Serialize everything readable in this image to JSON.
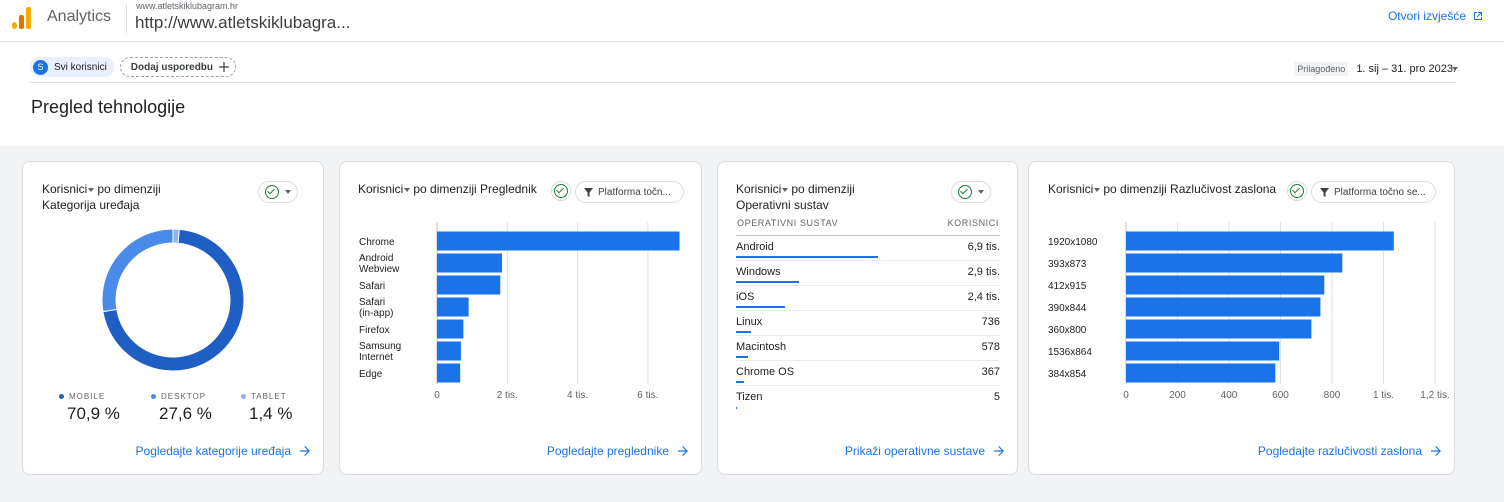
{
  "header": {
    "app_name": "Analytics",
    "property_url_small": "www.atletskiklubagram.hr",
    "property_url": "http://www.atletskiklubagra...",
    "open_report": "Otvori izvješće"
  },
  "toolbar": {
    "segment_initial": "S",
    "segment_label": "Svi korisnici",
    "add_comparison": "Dodaj usporedbu",
    "date_custom": "Prilagođeno",
    "date_range": "1. sij – 31. pro 2023."
  },
  "page_title": "Pregled tehnologije",
  "colors": {
    "primary": "#1a73e8",
    "mobile": "#1f5fc4",
    "desktop": "#4a8ae8",
    "tablet": "#8ab4f8"
  },
  "device_card": {
    "title_line1": "Korisnici",
    "title_rest1": "po dimenziji",
    "title_line2": "Kategorija uređaja",
    "link": "Pogledajte kategorije uređaja",
    "legend": [
      {
        "label": "MOBILE",
        "value": "70,9 %"
      },
      {
        "label": "DESKTOP",
        "value": "27,6 %"
      },
      {
        "label": "TABLET",
        "value": "1,4 %"
      }
    ]
  },
  "browser_card": {
    "title_metric": "Korisnici",
    "title_rest": "po dimenziji Preglednik",
    "filter": "Platforma točn...",
    "link": "Pogledajte preglednike"
  },
  "os_card": {
    "title_metric": "Korisnici",
    "title_rest": "po dimenziji",
    "title_line2": "Operativni sustav",
    "col_name": "OPERATIVNI SUSTAV",
    "col_value": "KORISNICI",
    "link": "Prikaži operativne sustave",
    "rows": [
      {
        "name": "Android",
        "value": "6,9 tis.",
        "share": 0.52
      },
      {
        "name": "Windows",
        "value": "2,9 tis.",
        "share": 0.23
      },
      {
        "name": "iOS",
        "value": "2,4 tis.",
        "share": 0.18
      },
      {
        "name": "Linux",
        "value": "736",
        "share": 0.055
      },
      {
        "name": "Macintosh",
        "value": "578",
        "share": 0.045
      },
      {
        "name": "Chrome OS",
        "value": "367",
        "share": 0.028
      },
      {
        "name": "Tizen",
        "value": "5",
        "share": 0.004
      }
    ]
  },
  "resolution_card": {
    "title_metric": "Korisnici",
    "title_rest": "po dimenziji Razlučivost zaslona",
    "filter": "Platforma točno se...",
    "link": "Pogledajte razlučivosti zaslona"
  },
  "chart_data": [
    {
      "type": "pie",
      "categories": [
        "MOBILE",
        "DESKTOP",
        "TABLET"
      ],
      "values": [
        70.9,
        27.6,
        1.4
      ]
    },
    {
      "type": "bar",
      "orientation": "horizontal",
      "categories": [
        "Chrome",
        "Android Webview",
        "Safari",
        "Safari (in-app)",
        "Firefox",
        "Samsung Internet",
        "Edge"
      ],
      "values": [
        6900,
        1850,
        1800,
        900,
        750,
        680,
        660
      ],
      "xlim": [
        0,
        7000
      ],
      "ticks": [
        0,
        2000,
        4000,
        6000
      ],
      "tick_labels": [
        "0",
        "2 tis.",
        "4 tis.",
        "6 tis."
      ],
      "grid": true
    },
    {
      "type": "bar",
      "orientation": "horizontal",
      "categories": [
        "1920x1080",
        "393x873",
        "412x915",
        "390x844",
        "360x800",
        "1536x864",
        "384x854"
      ],
      "values": [
        1040,
        840,
        770,
        755,
        720,
        595,
        580
      ],
      "xlim": [
        0,
        1200
      ],
      "ticks": [
        0,
        200,
        400,
        600,
        800,
        1000,
        1200
      ],
      "tick_labels": [
        "0",
        "200",
        "400",
        "600",
        "800",
        "1 tis.",
        "1,2 tis."
      ],
      "grid": true
    }
  ]
}
